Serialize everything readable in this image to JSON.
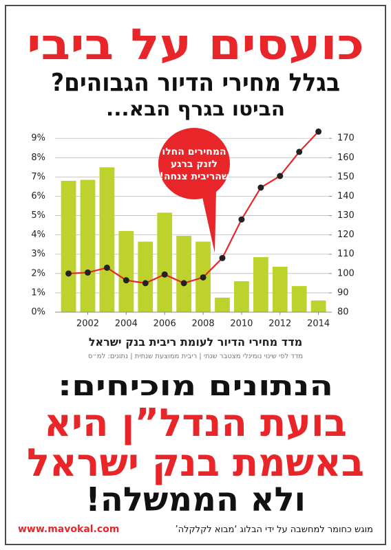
{
  "header": {
    "title": "כועסים על ביבי",
    "line2": "בגלל מחירי הדיור הגבוהים?",
    "line3": "הביטו בגרף הבא..."
  },
  "chart_data": {
    "type": "bar-line",
    "caption": "מדד מחירי הדיור לעומת ריבית בנק ישראל",
    "note": "מדד לפי שינוי נומינלי מצטבר שנתי | ריבית ממוצעת שנתית | נתונים: למ״ס",
    "annotation": [
      "המחירים החלו",
      "לזנק ברגע",
      "שהריבית צנחה!"
    ],
    "x": [
      2001,
      2002,
      2003,
      2004,
      2005,
      2006,
      2007,
      2008,
      2009,
      2010,
      2011,
      2012,
      2013,
      2014
    ],
    "xlim": [
      2000.3,
      2014.55
    ],
    "xticks": [
      2002,
      2004,
      2006,
      2008,
      2010,
      2012,
      2014
    ],
    "ylim": [
      0,
      9.4
    ],
    "yticks": [
      {
        "value": 0,
        "label": "0%"
      },
      {
        "value": 1,
        "label": "1%"
      },
      {
        "value": 2,
        "label": "2%"
      },
      {
        "value": 3,
        "label": "3%"
      },
      {
        "value": 4,
        "label": "4%"
      },
      {
        "value": 5,
        "label": "5%"
      },
      {
        "value": 6,
        "label": "6%"
      },
      {
        "value": 7,
        "label": "7%"
      },
      {
        "value": 8,
        "label": "8%"
      },
      {
        "value": 9,
        "label": "9%"
      }
    ],
    "y2lim": [
      80,
      174
    ],
    "y2ticks": [
      80,
      90,
      100,
      110,
      120,
      130,
      140,
      150,
      160,
      170
    ],
    "grid": true,
    "series": [
      {
        "type": "bar",
        "color": "#bdd22c",
        "values": [
          6.8,
          6.85,
          7.5,
          4.2,
          3.65,
          5.15,
          3.95,
          3.65,
          0.75,
          1.6,
          2.85,
          2.35,
          1.35,
          0.6
        ]
      },
      {
        "type": "line",
        "axis": "y2",
        "color": "#e8262a",
        "marker_color": "#222222",
        "values": [
          100,
          100.5,
          103,
          96.5,
          95,
          99.5,
          95,
          98,
          108,
          128,
          144.5,
          150.5,
          163,
          173.5
        ]
      }
    ]
  },
  "bottom": {
    "line1": "הנתונים מוכיחים:",
    "line2": "בועת הנדל”ן היא",
    "line3": "באשמת בנק ישראל",
    "line4": "ולא הממשלה!"
  },
  "footer": {
    "credit": "מוגש כחומר למחשבה על ידי הבלוג ‘מבוא לקלקלה’",
    "url": "www.mavokal.com"
  }
}
